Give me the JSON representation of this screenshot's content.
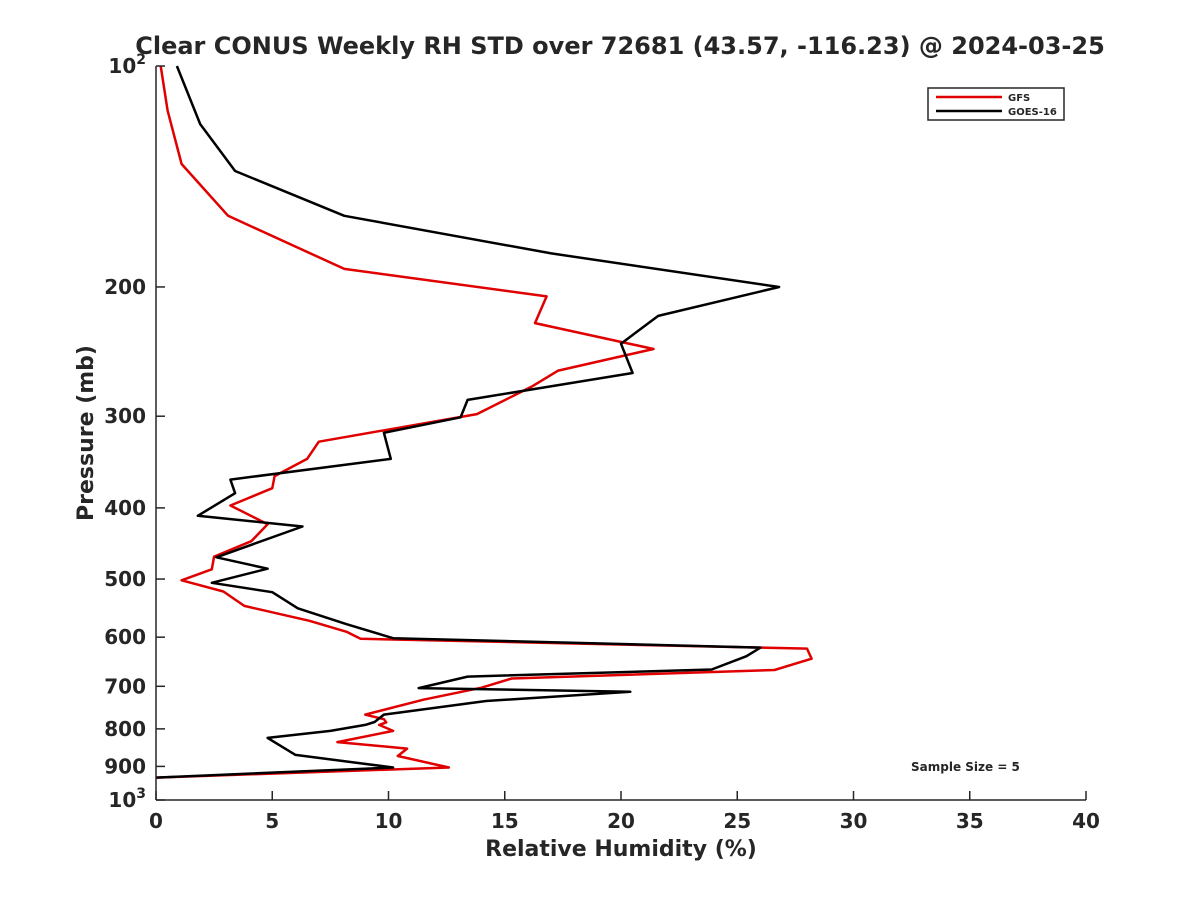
{
  "chart_data": {
    "type": "line",
    "title": "Clear CONUS Weekly RH STD over 72681 (43.57, -116.23) @ 2024-03-25",
    "xlabel": "Relative Humidity (%)",
    "ylabel": "Pressure (mb)",
    "xlim": [
      0,
      40
    ],
    "ylim": [
      100,
      1000
    ],
    "y_scale": "log",
    "y_reversed": true,
    "grid": false,
    "legend_position": "top-right",
    "annotation": "Sample Size = 5",
    "x_ticks": [
      "0",
      "5",
      "10",
      "15",
      "20",
      "25",
      "30",
      "35",
      "40"
    ],
    "y_ticks": [
      {
        "value": 100,
        "base": "10",
        "exp": "2"
      },
      {
        "value": 200,
        "label": "200"
      },
      {
        "value": 300,
        "label": "300"
      },
      {
        "value": 400,
        "label": "400"
      },
      {
        "value": 500,
        "label": "500"
      },
      {
        "value": 600,
        "label": "600"
      },
      {
        "value": 700,
        "label": "700"
      },
      {
        "value": 800,
        "label": "800"
      },
      {
        "value": 900,
        "label": "900"
      },
      {
        "value": 1000,
        "base": "10",
        "exp": "3"
      }
    ],
    "series": [
      {
        "name": "GFS",
        "color": "#e00000",
        "points": [
          [
            0.2,
            100
          ],
          [
            0.5,
            115
          ],
          [
            1.1,
            136
          ],
          [
            3.1,
            160
          ],
          [
            8.1,
            189
          ],
          [
            16.8,
            206
          ],
          [
            16.3,
            224
          ],
          [
            21.4,
            243
          ],
          [
            17.3,
            260
          ],
          [
            16.2,
            273
          ],
          [
            13.8,
            298
          ],
          [
            7.0,
            325
          ],
          [
            6.5,
            343
          ],
          [
            5.1,
            362
          ],
          [
            5.0,
            376
          ],
          [
            3.2,
            397
          ],
          [
            4.8,
            421
          ],
          [
            4.1,
            444
          ],
          [
            2.5,
            466
          ],
          [
            2.4,
            485
          ],
          [
            1.1,
            502
          ],
          [
            2.9,
            520
          ],
          [
            3.8,
            544
          ],
          [
            6.6,
            570
          ],
          [
            8.2,
            590
          ],
          [
            8.8,
            603
          ],
          [
            28.0,
            622
          ],
          [
            28.2,
            642
          ],
          [
            26.6,
            665
          ],
          [
            15.3,
            683
          ],
          [
            14.0,
            703
          ],
          [
            11.5,
            730
          ],
          [
            9.0,
            765
          ],
          [
            9.8,
            776
          ],
          [
            9.9,
            784
          ],
          [
            9.6,
            790
          ],
          [
            10.2,
            805
          ],
          [
            7.8,
            834
          ],
          [
            10.8,
            851
          ],
          [
            10.4,
            871
          ],
          [
            12.6,
            903
          ],
          [
            0.0,
            932
          ]
        ]
      },
      {
        "name": "GOES-16",
        "color": "#000000",
        "points": [
          [
            0.9,
            100
          ],
          [
            1.9,
            120
          ],
          [
            3.4,
            139
          ],
          [
            8.1,
            160
          ],
          [
            17.0,
            180
          ],
          [
            26.8,
            200
          ],
          [
            21.6,
            219
          ],
          [
            20.0,
            239
          ],
          [
            20.5,
            262
          ],
          [
            13.4,
            285
          ],
          [
            13.1,
            301
          ],
          [
            9.8,
            316
          ],
          [
            10.1,
            343
          ],
          [
            3.2,
            366
          ],
          [
            3.4,
            382
          ],
          [
            1.8,
            410
          ],
          [
            6.3,
            424
          ],
          [
            2.6,
            467
          ],
          [
            4.8,
            484
          ],
          [
            2.4,
            506
          ],
          [
            5.0,
            521
          ],
          [
            6.1,
            548
          ],
          [
            8.2,
            576
          ],
          [
            10.2,
            602
          ],
          [
            26.0,
            620
          ],
          [
            25.4,
            637
          ],
          [
            23.9,
            664
          ],
          [
            13.4,
            679
          ],
          [
            11.3,
            704
          ],
          [
            20.4,
            712
          ],
          [
            14.2,
            733
          ],
          [
            9.8,
            765
          ],
          [
            9.4,
            783
          ],
          [
            9.0,
            790
          ],
          [
            7.5,
            805
          ],
          [
            4.8,
            823
          ],
          [
            6.0,
            868
          ],
          [
            10.2,
            903
          ],
          [
            0.0,
            932
          ]
        ]
      }
    ]
  }
}
